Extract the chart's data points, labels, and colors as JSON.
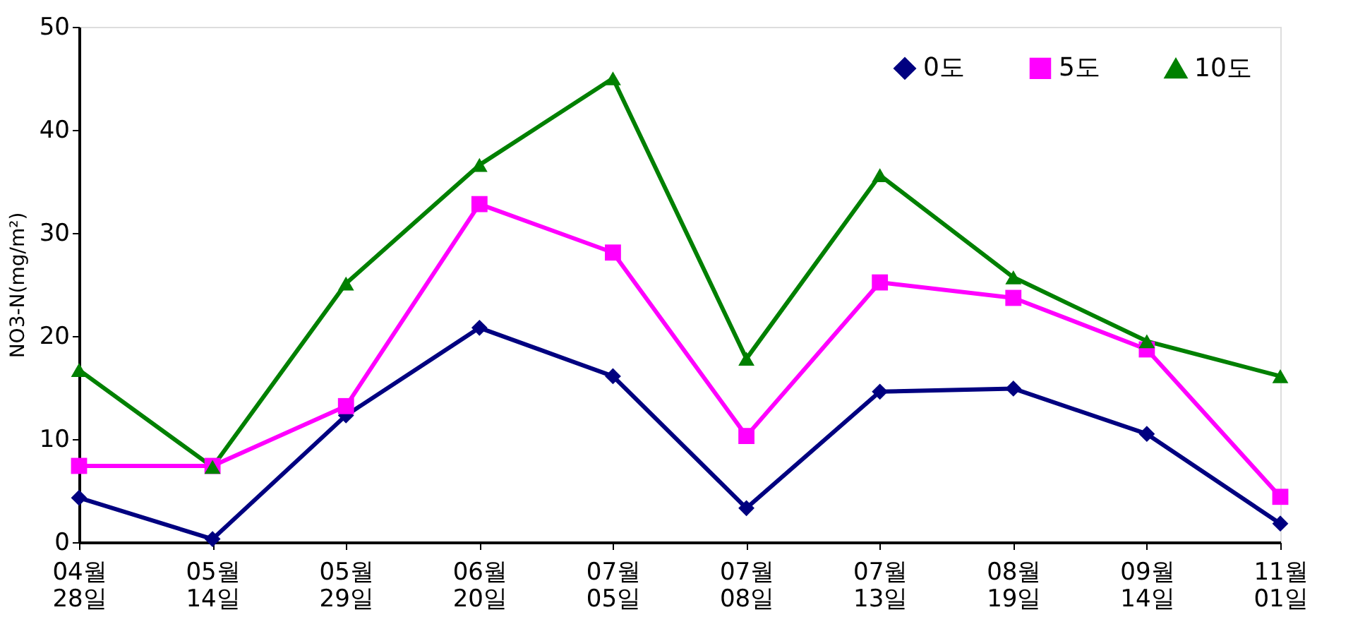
{
  "chart_data": {
    "type": "line",
    "ylabel": "NO3-N(mg/m²)",
    "categories": [
      "04월 28일",
      "05월 14일",
      "05월 29일",
      "06월 20일",
      "07월 05일",
      "07월 08일",
      "07월 13일",
      "08월 19일",
      "09월 14일",
      "11월 01일"
    ],
    "series": [
      {
        "name": "0도",
        "color": "#000080",
        "marker": "diamond",
        "values": [
          4.3,
          0.3,
          12.3,
          20.8,
          16.1,
          3.3,
          14.6,
          14.9,
          10.5,
          1.8
        ]
      },
      {
        "name": "5도",
        "color": "#ff00ff",
        "marker": "square",
        "values": [
          7.4,
          7.4,
          13.2,
          32.8,
          28.1,
          10.3,
          25.2,
          23.7,
          18.7,
          4.4
        ]
      },
      {
        "name": "10도",
        "color": "#008000",
        "marker": "triangle",
        "values": [
          16.7,
          7.3,
          25.1,
          36.6,
          45.0,
          17.8,
          35.6,
          25.7,
          19.5,
          16.1
        ]
      }
    ],
    "ylim": [
      0,
      50
    ],
    "yticks": [
      0,
      10,
      20,
      30,
      40,
      50
    ],
    "grid": false,
    "legend": "top right",
    "line_style": "solid"
  }
}
